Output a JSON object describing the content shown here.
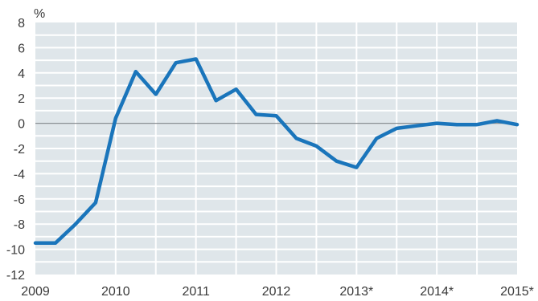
{
  "chart_data": {
    "type": "line",
    "unit_label": "%",
    "x_tick_labels": [
      "2009",
      "2010",
      "2011",
      "2012",
      "2013*",
      "2014*",
      "2015*"
    ],
    "y_tick_labels": [
      "8",
      "6",
      "4",
      "2",
      "0",
      "-2",
      "-4",
      "-6",
      "-8",
      "-10",
      "-12"
    ],
    "xlim": [
      2009,
      2015
    ],
    "ylim": [
      -12,
      8
    ],
    "grid": true,
    "zero_line": true,
    "colors": {
      "plot_background": "#dfe6ea",
      "grid": "#ffffff",
      "line": "#1a75bb",
      "zero_line": "#8a8f93"
    },
    "series": [
      {
        "x": [
          2009.0,
          2009.25,
          2009.5,
          2009.75,
          2010.0,
          2010.25,
          2010.5,
          2010.75,
          2011.0,
          2011.25,
          2011.5,
          2011.75,
          2012.0,
          2012.25,
          2012.5,
          2012.75,
          2013.0,
          2013.25,
          2013.5,
          2013.75,
          2014.0,
          2014.25,
          2014.5,
          2014.75,
          2015.0
        ],
        "y": [
          -9.5,
          -9.5,
          -8.0,
          -6.3,
          0.4,
          4.1,
          2.3,
          4.8,
          5.1,
          1.8,
          2.7,
          0.7,
          0.6,
          -1.2,
          -1.8,
          -3.0,
          -3.5,
          -1.2,
          -0.4,
          -0.2,
          0.0,
          -0.1,
          -0.1,
          0.2,
          -0.1
        ]
      }
    ]
  }
}
